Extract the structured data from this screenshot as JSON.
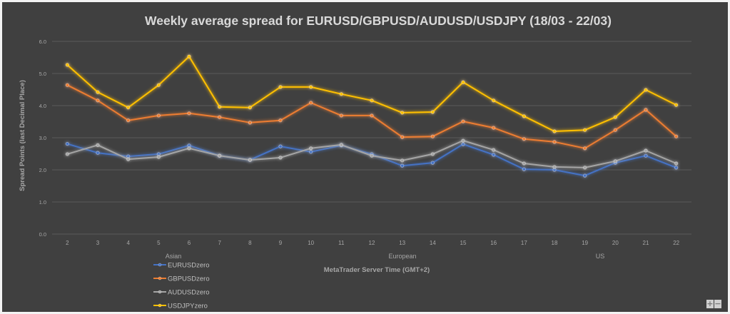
{
  "chart_data": {
    "type": "line",
    "title": "Weekly average spread for EURUSD/GBPUSD/AUDUSD/USDJPY (18/03 - 22/03)",
    "xlabel": "MetaTrader Server Time (GMT+2)",
    "ylabel": "Spread Points  (last Decimal Place)",
    "categories": [
      "2",
      "3",
      "4",
      "5",
      "6",
      "7",
      "8",
      "9",
      "10",
      "11",
      "12",
      "13",
      "14",
      "15",
      "16",
      "17",
      "18",
      "19",
      "20",
      "21",
      "22"
    ],
    "ylim": [
      0,
      6
    ],
    "yticks": [
      "0.0",
      "1.0",
      "2.0",
      "3.0",
      "4.0",
      "5.0",
      "6.0"
    ],
    "grid": true,
    "legend_position": "bottom-left",
    "session_labels": [
      {
        "label": "Asian",
        "at_category": "5.5"
      },
      {
        "label": "European",
        "at_category": "13"
      },
      {
        "label": "US",
        "at_category": "19.5"
      }
    ],
    "series": [
      {
        "name": "EURUSDzero",
        "color": "#4472c4",
        "values": [
          2.81,
          2.53,
          2.42,
          2.49,
          2.76,
          2.44,
          2.31,
          2.73,
          2.56,
          2.76,
          2.49,
          2.13,
          2.22,
          2.8,
          2.47,
          2.02,
          2.0,
          1.82,
          2.22,
          2.44,
          2.07
        ]
      },
      {
        "name": "GBPUSDzero",
        "color": "#ed7d31",
        "values": [
          4.64,
          4.16,
          3.54,
          3.69,
          3.76,
          3.64,
          3.47,
          3.54,
          4.09,
          3.69,
          3.69,
          3.02,
          3.04,
          3.51,
          3.31,
          2.96,
          2.87,
          2.67,
          3.24,
          3.87,
          3.04
        ]
      },
      {
        "name": "AUDUSDzero",
        "color": "#a5a5a5",
        "values": [
          2.49,
          2.77,
          2.33,
          2.4,
          2.67,
          2.44,
          2.31,
          2.38,
          2.67,
          2.78,
          2.44,
          2.29,
          2.49,
          2.91,
          2.62,
          2.2,
          2.09,
          2.07,
          2.27,
          2.6,
          2.2
        ]
      },
      {
        "name": "USDJPYzero",
        "color": "#ffc000",
        "values": [
          5.27,
          4.42,
          3.94,
          4.64,
          5.53,
          3.96,
          3.94,
          4.58,
          4.58,
          4.36,
          4.16,
          3.78,
          3.8,
          4.73,
          4.16,
          3.67,
          3.2,
          3.24,
          3.64,
          4.49,
          4.02
        ]
      }
    ]
  },
  "controls": {
    "zoom_in": "+",
    "zoom_out": "−"
  }
}
